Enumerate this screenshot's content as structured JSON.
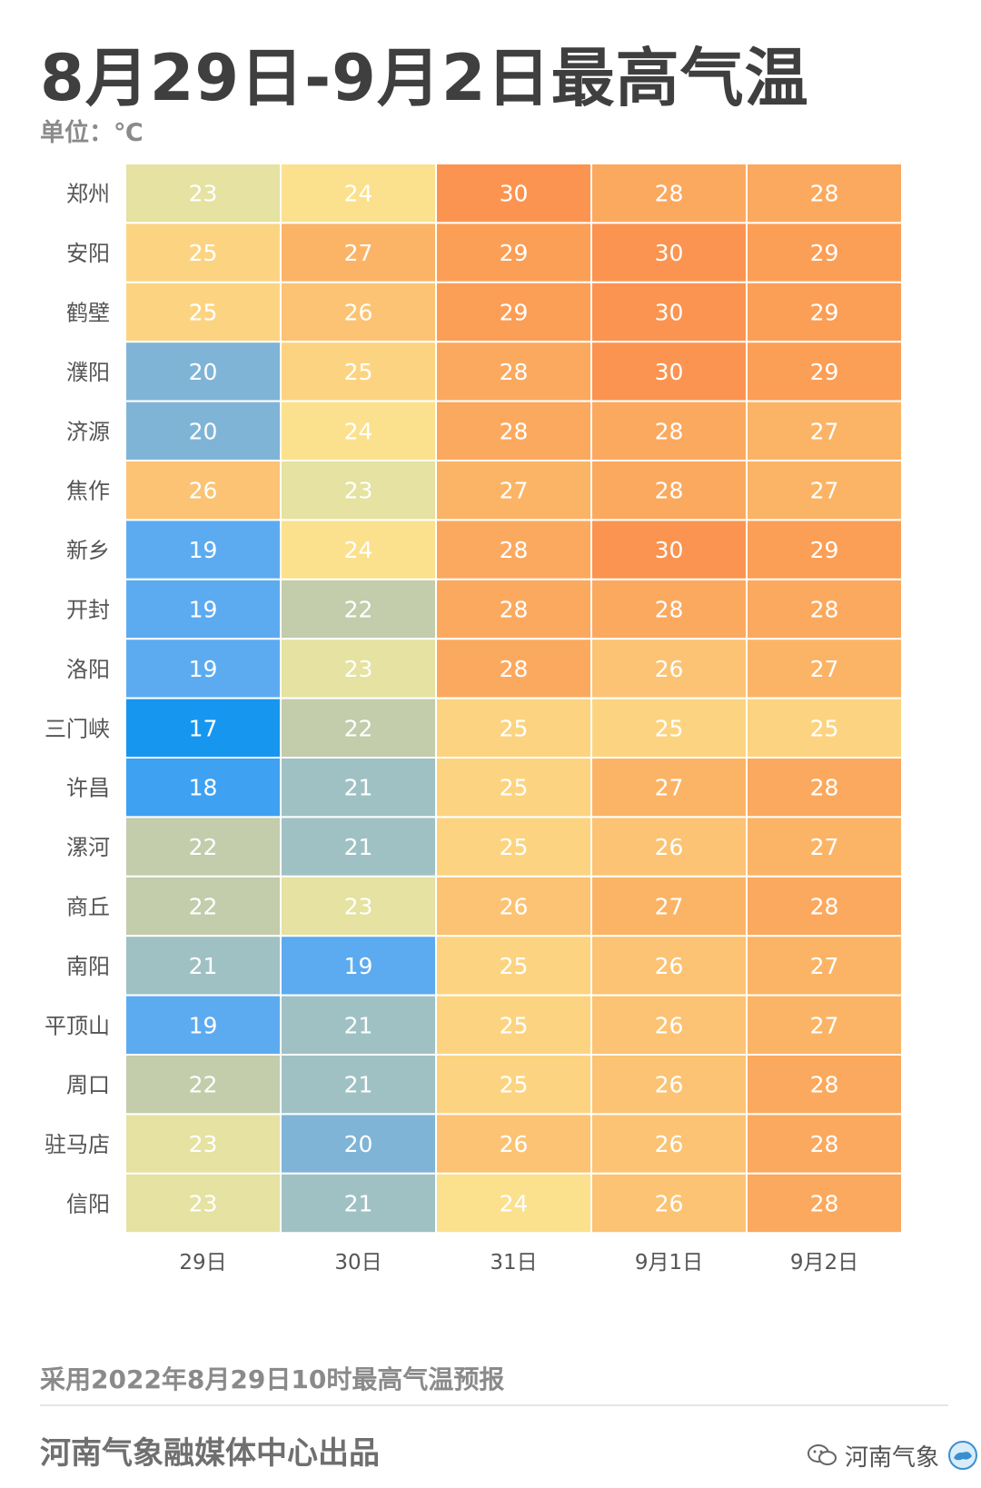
{
  "title": "8月29日-9月2日最高气温",
  "unit_label": "单位：℃",
  "note": "采用2022年8月29日10时最高气温预报",
  "footer": "河南气象融媒体中心出品",
  "watermark": {
    "text": "河南气象",
    "icon": "wechat-icon"
  },
  "colors": {
    "17": "#1796f0",
    "18": "#3ea1f2",
    "19": "#5cabf0",
    "20": "#7fb4d6",
    "21": "#9fc1c4",
    "22": "#c3ccab",
    "23": "#e5e2a2",
    "24": "#fbe18e",
    "25": "#fcd481",
    "26": "#fbc373",
    "27": "#fbb466",
    "28": "#fba95f",
    "29": "#fb9e56",
    "30": "#fb9450"
  },
  "chart_data": {
    "type": "heatmap",
    "title": "8月29日-9月2日最高气温",
    "unit": "℃",
    "columns": [
      "29日",
      "30日",
      "31日",
      "9月1日",
      "9月2日"
    ],
    "rows": [
      "郑州",
      "安阳",
      "鹤壁",
      "濮阳",
      "济源",
      "焦作",
      "新乡",
      "开封",
      "洛阳",
      "三门峡",
      "许昌",
      "漯河",
      "商丘",
      "南阳",
      "平顶山",
      "周口",
      "驻马店",
      "信阳"
    ],
    "values": [
      [
        23,
        24,
        30,
        28,
        28
      ],
      [
        25,
        27,
        29,
        30,
        29
      ],
      [
        25,
        26,
        29,
        30,
        29
      ],
      [
        20,
        25,
        28,
        30,
        29
      ],
      [
        20,
        24,
        28,
        28,
        27
      ],
      [
        26,
        23,
        27,
        28,
        27
      ],
      [
        19,
        24,
        28,
        30,
        29
      ],
      [
        19,
        22,
        28,
        28,
        28
      ],
      [
        19,
        23,
        28,
        26,
        27
      ],
      [
        17,
        22,
        25,
        25,
        25
      ],
      [
        18,
        21,
        25,
        27,
        28
      ],
      [
        22,
        21,
        25,
        26,
        27
      ],
      [
        22,
        23,
        26,
        27,
        28
      ],
      [
        21,
        19,
        25,
        26,
        27
      ],
      [
        19,
        21,
        25,
        26,
        27
      ],
      [
        22,
        21,
        25,
        26,
        28
      ],
      [
        23,
        20,
        26,
        26,
        28
      ],
      [
        23,
        21,
        24,
        26,
        28
      ]
    ]
  }
}
